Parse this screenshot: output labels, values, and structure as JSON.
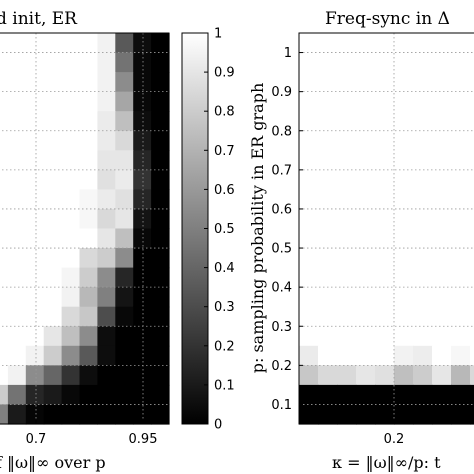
{
  "chart_data": [
    {
      "type": "heatmap",
      "title": "d init, ER",
      "xlabel": "f ‖ω‖∞ over p",
      "x_ticks": [
        "0.7",
        "0.95"
      ],
      "x_range": [
        0.5,
        1.0
      ],
      "y_range": [
        0.05,
        1.05
      ],
      "grid": true,
      "columns": 10,
      "rows": [
        [
          1.0,
          1.0,
          1.0,
          1.0,
          1.0,
          1.0,
          0.95,
          0.35,
          0.05,
          0.0
        ],
        [
          1.0,
          1.0,
          1.0,
          1.0,
          1.0,
          1.0,
          0.95,
          0.45,
          0.03,
          0.0
        ],
        [
          1.0,
          1.0,
          1.0,
          1.0,
          1.0,
          1.0,
          0.95,
          0.55,
          0.03,
          0.0
        ],
        [
          1.0,
          1.0,
          1.0,
          1.0,
          1.0,
          1.0,
          0.95,
          0.65,
          0.03,
          0.0
        ],
        [
          1.0,
          1.0,
          1.0,
          1.0,
          1.0,
          1.0,
          0.92,
          0.75,
          0.05,
          0.0
        ],
        [
          1.0,
          1.0,
          1.0,
          1.0,
          1.0,
          1.0,
          0.92,
          0.85,
          0.1,
          0.0
        ],
        [
          1.0,
          1.0,
          1.0,
          1.0,
          1.0,
          1.0,
          0.9,
          0.9,
          0.15,
          0.0
        ],
        [
          1.0,
          1.0,
          1.0,
          1.0,
          1.0,
          1.0,
          0.88,
          0.92,
          0.2,
          0.0
        ],
        [
          1.0,
          1.0,
          1.0,
          1.0,
          1.0,
          0.97,
          0.92,
          0.88,
          0.15,
          0.0
        ],
        [
          1.0,
          1.0,
          1.0,
          1.0,
          1.0,
          0.97,
          0.85,
          0.9,
          0.08,
          0.0
        ],
        [
          1.0,
          1.0,
          1.0,
          1.0,
          1.0,
          1.0,
          0.9,
          0.75,
          0.03,
          0.0
        ],
        [
          1.0,
          1.0,
          1.0,
          1.0,
          1.0,
          0.85,
          0.8,
          0.55,
          0.0,
          0.0
        ],
        [
          1.0,
          1.0,
          1.0,
          1.0,
          0.96,
          0.8,
          0.55,
          0.15,
          0.0,
          0.0
        ],
        [
          1.0,
          1.0,
          1.0,
          1.0,
          0.95,
          0.72,
          0.5,
          0.08,
          0.0,
          0.0
        ],
        [
          1.0,
          1.0,
          1.0,
          1.0,
          0.85,
          0.78,
          0.3,
          0.03,
          0.0,
          0.0
        ],
        [
          1.0,
          1.0,
          1.0,
          0.9,
          0.75,
          0.55,
          0.05,
          0.0,
          0.0,
          0.0
        ],
        [
          1.0,
          1.0,
          0.95,
          0.8,
          0.55,
          0.35,
          0.05,
          0.0,
          0.0,
          0.0
        ],
        [
          1.0,
          0.95,
          0.55,
          0.4,
          0.2,
          0.05,
          0.0,
          0.0,
          0.0,
          0.0
        ],
        [
          0.8,
          0.45,
          0.15,
          0.1,
          0.03,
          0.0,
          0.0,
          0.0,
          0.0,
          0.0
        ],
        [
          0.5,
          0.1,
          0.02,
          0.0,
          0.0,
          0.0,
          0.0,
          0.0,
          0.0,
          0.0
        ]
      ]
    },
    {
      "type": "heatmap",
      "title": "Freq-sync in Δ",
      "xlabel": "κ = ‖ω‖∞/p: t",
      "ylabel": "p: sampling probability in ER graph",
      "x_ticks": [
        "0.2"
      ],
      "y_ticks": [
        "1",
        "0.9",
        "0.8",
        "0.7",
        "0.6",
        "0.5",
        "0.4",
        "0.3",
        "0.2",
        "0.1"
      ],
      "y_range": [
        0.05,
        1.05
      ],
      "grid": true,
      "columns": 10,
      "rows": [
        [
          1.0,
          1.0,
          1.0,
          1.0,
          1.0,
          1.0,
          1.0,
          1.0,
          1.0,
          1.0
        ],
        [
          1.0,
          1.0,
          1.0,
          1.0,
          1.0,
          1.0,
          1.0,
          1.0,
          1.0,
          1.0
        ],
        [
          1.0,
          1.0,
          1.0,
          1.0,
          1.0,
          1.0,
          1.0,
          1.0,
          1.0,
          1.0
        ],
        [
          1.0,
          1.0,
          1.0,
          1.0,
          1.0,
          1.0,
          1.0,
          1.0,
          1.0,
          1.0
        ],
        [
          1.0,
          1.0,
          1.0,
          1.0,
          1.0,
          1.0,
          1.0,
          1.0,
          1.0,
          1.0
        ],
        [
          1.0,
          1.0,
          1.0,
          1.0,
          1.0,
          1.0,
          1.0,
          1.0,
          1.0,
          1.0
        ],
        [
          1.0,
          1.0,
          1.0,
          1.0,
          1.0,
          1.0,
          1.0,
          1.0,
          1.0,
          1.0
        ],
        [
          1.0,
          1.0,
          1.0,
          1.0,
          1.0,
          1.0,
          1.0,
          1.0,
          1.0,
          1.0
        ],
        [
          1.0,
          1.0,
          1.0,
          1.0,
          1.0,
          1.0,
          1.0,
          1.0,
          1.0,
          1.0
        ],
        [
          1.0,
          1.0,
          1.0,
          1.0,
          1.0,
          1.0,
          1.0,
          1.0,
          1.0,
          1.0
        ],
        [
          1.0,
          1.0,
          1.0,
          1.0,
          1.0,
          1.0,
          1.0,
          1.0,
          1.0,
          1.0
        ],
        [
          1.0,
          1.0,
          1.0,
          1.0,
          1.0,
          1.0,
          1.0,
          1.0,
          1.0,
          1.0
        ],
        [
          1.0,
          1.0,
          1.0,
          1.0,
          1.0,
          1.0,
          1.0,
          1.0,
          1.0,
          1.0
        ],
        [
          1.0,
          1.0,
          1.0,
          1.0,
          1.0,
          1.0,
          1.0,
          1.0,
          1.0,
          1.0
        ],
        [
          1.0,
          1.0,
          1.0,
          1.0,
          1.0,
          1.0,
          1.0,
          1.0,
          1.0,
          1.0
        ],
        [
          1.0,
          1.0,
          1.0,
          1.0,
          1.0,
          1.0,
          1.0,
          1.0,
          1.0,
          1.0
        ],
        [
          0.92,
          1.0,
          1.0,
          1.0,
          1.0,
          0.95,
          0.93,
          1.0,
          0.97,
          1.0
        ],
        [
          0.78,
          0.85,
          0.85,
          0.9,
          0.88,
          0.75,
          0.8,
          0.9,
          0.72,
          0.85
        ],
        [
          0.0,
          0.0,
          0.0,
          0.0,
          0.0,
          0.0,
          0.0,
          0.0,
          0.0,
          0.0
        ],
        [
          0.0,
          0.0,
          0.0,
          0.0,
          0.0,
          0.0,
          0.0,
          0.0,
          0.0,
          0.0
        ]
      ]
    }
  ],
  "colorbar": {
    "ticks": [
      "1",
      "0.9",
      "0.8",
      "0.7",
      "0.6",
      "0.5",
      "0.4",
      "0.3",
      "0.2",
      "0.1",
      "0"
    ],
    "range": [
      0,
      1
    ]
  }
}
